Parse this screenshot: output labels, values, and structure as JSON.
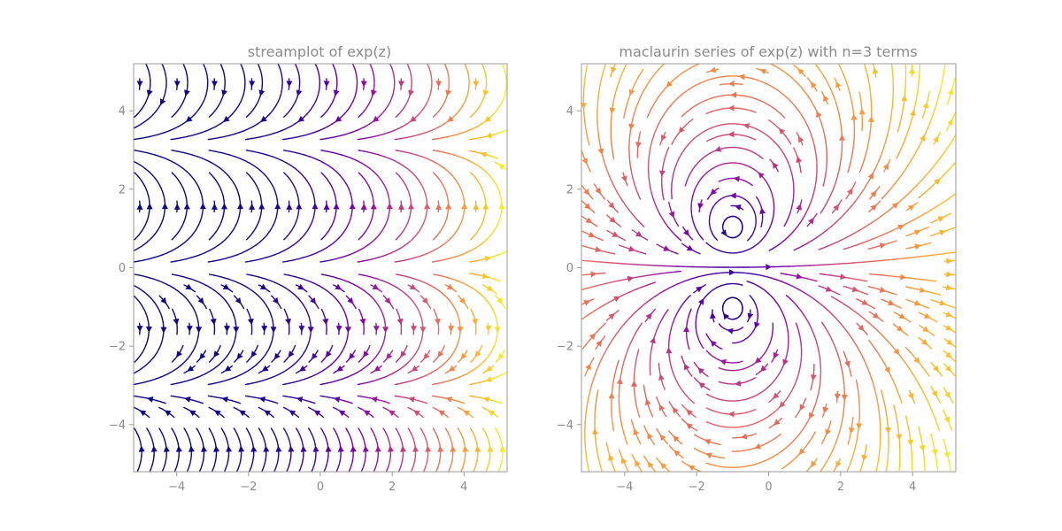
{
  "chart_data": [
    {
      "type": "streamplot",
      "title": "streamplot of exp(z)",
      "field": "exp",
      "xlim": [
        -5.2,
        5.2
      ],
      "ylim": [
        -5.2,
        5.2
      ],
      "xticks": [
        -4,
        -2,
        0,
        2,
        4
      ],
      "yticks": [
        -4,
        -2,
        0,
        2,
        4
      ],
      "xtick_labels": [
        "−4",
        "−2",
        "0",
        "2",
        "4"
      ],
      "ytick_labels": [
        "−4",
        "−2",
        "0",
        "2",
        "4"
      ],
      "colormap": "plasma",
      "color_by": "|f(z)|",
      "grid": false
    },
    {
      "type": "streamplot",
      "title": "maclaurin series of exp(z) with n=3 terms",
      "field": "1 + z + z^2/2",
      "xlim": [
        -5.2,
        5.2
      ],
      "ylim": [
        -5.2,
        5.2
      ],
      "xticks": [
        -4,
        -2,
        0,
        2,
        4
      ],
      "yticks": [
        -4,
        -2,
        0,
        2,
        4
      ],
      "xtick_labels": [
        "−4",
        "−2",
        "0",
        "2",
        "4"
      ],
      "ytick_labels": [
        "−4",
        "−2",
        "0",
        "2",
        "4"
      ],
      "colormap": "plasma",
      "color_by": "|f(z)|",
      "grid": false
    }
  ],
  "colors": {
    "axis": "#9a9a9a",
    "text": "#8a8a8a",
    "plasma_low": "#0d0887",
    "plasma_mid": "#9c179e",
    "plasma_high": "#f0f921"
  }
}
